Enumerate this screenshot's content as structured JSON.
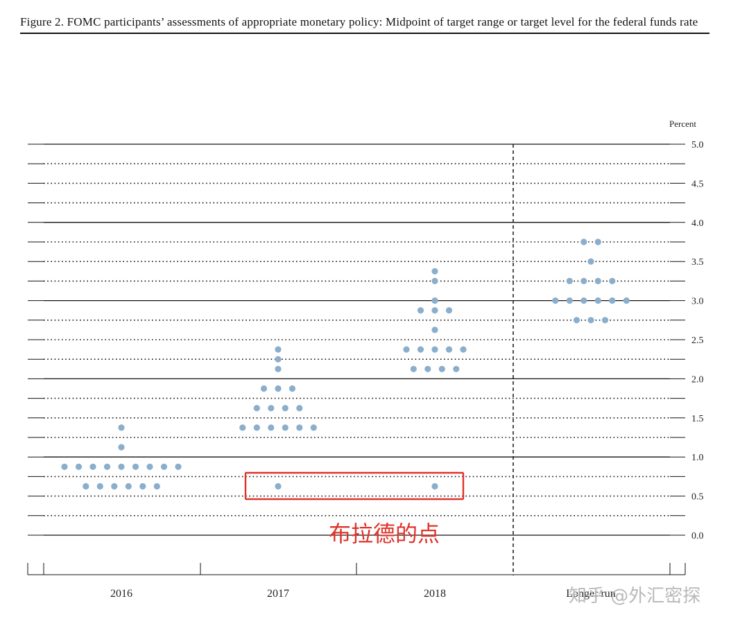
{
  "figure_title": "Figure 2. FOMC participants’ assessments of appropriate monetary policy: Midpoint of target range or target level for the federal funds rate",
  "chart_data": {
    "type": "scatter",
    "title": "Figure 2. FOMC participants’ assessments of appropriate monetary policy: Midpoint of target range or target level for the federal funds rate",
    "ylabel": "Percent",
    "ylim": [
      0,
      5
    ],
    "y_ticks": [
      "0.0",
      "0.5",
      "1.0",
      "1.5",
      "2.0",
      "2.5",
      "3.0",
      "3.5",
      "4.0",
      "4.5",
      "5.0"
    ],
    "gridlines": "solid at whole percents, dotted at 0.25 steps",
    "categories": [
      "2016",
      "2017",
      "2018",
      "Longer run"
    ],
    "dot_color": "#8aaecb",
    "series": [
      {
        "category": "2016",
        "points": [
          {
            "y": 1.375,
            "n": 1
          },
          {
            "y": 1.125,
            "n": 1
          },
          {
            "y": 0.875,
            "n": 9
          },
          {
            "y": 0.625,
            "n": 6
          }
        ]
      },
      {
        "category": "2017",
        "points": [
          {
            "y": 2.375,
            "n": 1
          },
          {
            "y": 2.25,
            "n": 1
          },
          {
            "y": 2.125,
            "n": 1
          },
          {
            "y": 1.875,
            "n": 3
          },
          {
            "y": 1.625,
            "n": 4
          },
          {
            "y": 1.375,
            "n": 6
          },
          {
            "y": 0.625,
            "n": 1
          }
        ]
      },
      {
        "category": "2018",
        "points": [
          {
            "y": 3.375,
            "n": 1
          },
          {
            "y": 3.25,
            "n": 1
          },
          {
            "y": 3.0,
            "n": 1
          },
          {
            "y": 2.875,
            "n": 3
          },
          {
            "y": 2.625,
            "n": 1
          },
          {
            "y": 2.375,
            "n": 5
          },
          {
            "y": 2.125,
            "n": 4
          },
          {
            "y": 0.625,
            "n": 1
          }
        ]
      },
      {
        "category": "Longer run",
        "points": [
          {
            "y": 3.75,
            "n": 2
          },
          {
            "y": 3.5,
            "n": 1
          },
          {
            "y": 3.25,
            "n": 4
          },
          {
            "y": 3.0,
            "n": 6
          },
          {
            "y": 2.75,
            "n": 3
          }
        ]
      }
    ],
    "annotation": {
      "text": "布拉德的点",
      "color": "#e0322a"
    }
  },
  "watermark": "知乎 @外汇密探"
}
